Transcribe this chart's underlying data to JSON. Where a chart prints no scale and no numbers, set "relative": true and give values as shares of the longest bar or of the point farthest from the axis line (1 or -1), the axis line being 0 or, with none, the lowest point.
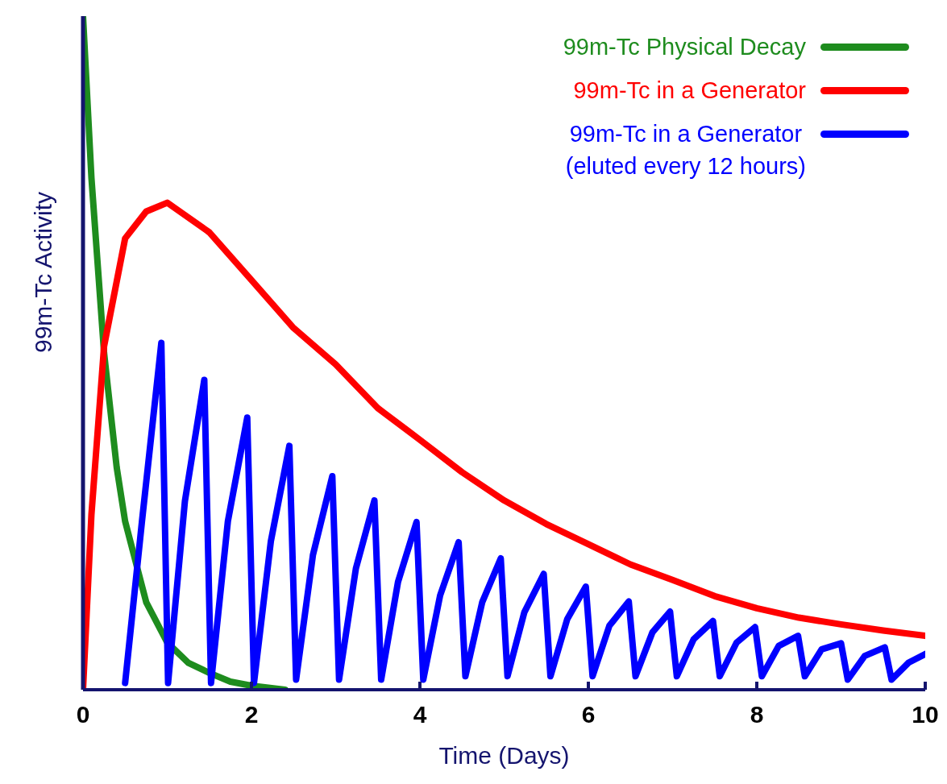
{
  "chart_data": {
    "type": "line",
    "xlabel": "Time (Days)",
    "ylabel": "99m-Tc Activity",
    "relative": true,
    "xlim": [
      0,
      10
    ],
    "xticks": [
      0,
      2,
      4,
      6,
      8,
      10
    ],
    "legend": "top right",
    "marker": "none",
    "line_style": "solid",
    "series": [
      {
        "name": "99m-Tc Physical Decay",
        "color": "#1e8c1e",
        "x": [
          0,
          0.1,
          0.25,
          0.4,
          0.5,
          0.75,
          1,
          1.25,
          1.5,
          1.75,
          2,
          2.4
        ],
        "values": [
          1,
          0.76,
          0.5,
          0.33,
          0.25,
          0.13,
          0.07,
          0.04,
          0.025,
          0.012,
          0.006,
          0
        ]
      },
      {
        "name": "99m-Tc in a Generator",
        "color": "#ff0000",
        "x": [
          0,
          0.1,
          0.25,
          0.5,
          0.75,
          1,
          1.5,
          2,
          2.5,
          3,
          3.5,
          4,
          4.5,
          5,
          5.5,
          6,
          6.5,
          7,
          7.5,
          8,
          8.5,
          9,
          9.5,
          10
        ],
        "values": [
          0,
          0.26,
          0.51,
          0.67,
          0.71,
          0.723,
          0.679,
          0.608,
          0.537,
          0.483,
          0.418,
          0.371,
          0.323,
          0.281,
          0.246,
          0.216,
          0.186,
          0.163,
          0.139,
          0.121,
          0.107,
          0.097,
          0.088,
          0.08
        ]
      },
      {
        "name": "99m-Tc in a Generator\n(eluted every 12 hours)",
        "color": "#0000ff",
        "x": [
          0.5,
          0.7,
          0.93,
          1.01,
          1.21,
          1.44,
          1.52,
          1.72,
          1.95,
          2.03,
          2.23,
          2.45,
          2.53,
          2.73,
          2.96,
          3.04,
          3.24,
          3.46,
          3.54,
          3.74,
          3.96,
          4.04,
          4.24,
          4.46,
          4.54,
          4.74,
          4.96,
          5.04,
          5.24,
          5.47,
          5.55,
          5.75,
          5.97,
          6.05,
          6.25,
          6.48,
          6.56,
          6.76,
          6.97,
          7.05,
          7.25,
          7.48,
          7.56,
          7.76,
          7.98,
          8.06,
          8.26,
          8.49,
          8.57,
          8.77,
          9,
          9.08,
          9.28,
          9.52,
          9.6,
          9.8,
          10
        ],
        "values": [
          0.01,
          0.25,
          0.515,
          0.01,
          0.28,
          0.46,
          0.01,
          0.25,
          0.404,
          0.01,
          0.22,
          0.362,
          0.015,
          0.2,
          0.317,
          0.015,
          0.18,
          0.281,
          0.015,
          0.16,
          0.249,
          0.015,
          0.14,
          0.219,
          0.02,
          0.13,
          0.195,
          0.02,
          0.115,
          0.172,
          0.02,
          0.105,
          0.153,
          0.02,
          0.095,
          0.131,
          0.02,
          0.085,
          0.116,
          0.02,
          0.075,
          0.102,
          0.02,
          0.07,
          0.093,
          0.02,
          0.065,
          0.08,
          0.02,
          0.06,
          0.069,
          0.015,
          0.05,
          0.063,
          0.015,
          0.04,
          0.053
        ]
      }
    ]
  }
}
